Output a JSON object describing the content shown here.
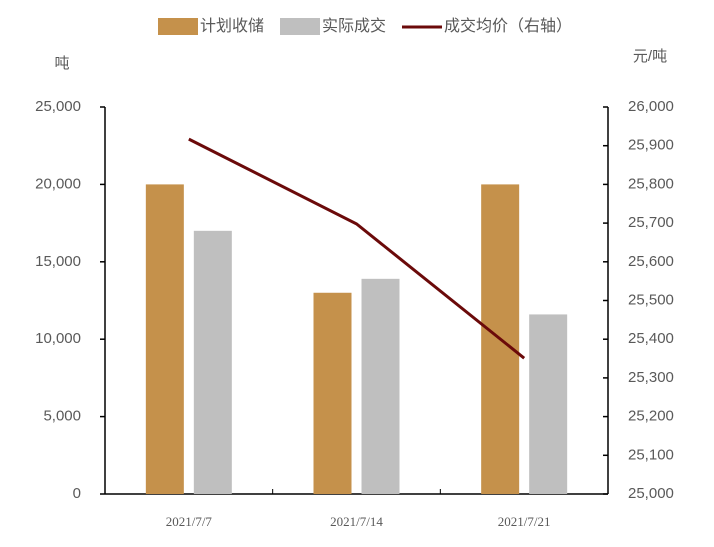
{
  "chart_data": {
    "type": "bar-line",
    "y_label": "吨",
    "y2_label": "元/吨",
    "categories": [
      "2021/7/7",
      "2021/7/14",
      "2021/7/21"
    ],
    "series": [
      {
        "name": "计划收储",
        "color": "#c5914b",
        "type": "bar",
        "values": [
          20000,
          13000,
          20000
        ]
      },
      {
        "name": "实际成交",
        "color": "#bfbfbf",
        "type": "bar",
        "values": [
          17000,
          13900,
          11600
        ]
      },
      {
        "name": "成交均价（右轴）",
        "color": "#6b0a0a",
        "type": "line",
        "axis": "y2",
        "values": [
          25917,
          25698,
          25351
        ]
      }
    ],
    "ylim": [
      0,
      25000
    ],
    "yticks": [
      0,
      {
        "value": 5000,
        "label": "5,000"
      },
      {
        "value": 10000,
        "label": "10,000"
      },
      {
        "value": 15000,
        "label": "15,000"
      },
      {
        "value": 20000,
        "label": "20,000"
      },
      {
        "value": 25000,
        "label": "25,000"
      }
    ],
    "y2lim": [
      25000,
      26000
    ],
    "y2ticks": [
      {
        "value": 25000,
        "label": "25,000"
      },
      {
        "value": 25100,
        "label": "25,100"
      },
      {
        "value": 25200,
        "label": "25,200"
      },
      {
        "value": 25300,
        "label": "25,300"
      },
      {
        "value": 25400,
        "label": "25,400"
      },
      {
        "value": 25500,
        "label": "25,500"
      },
      {
        "value": 25600,
        "label": "25,600"
      },
      {
        "value": 25700,
        "label": "25,700"
      },
      {
        "value": 25800,
        "label": "25,800"
      },
      {
        "value": 25900,
        "label": "25,900"
      },
      {
        "value": 26000,
        "label": "26,000"
      }
    ],
    "grid": false
  }
}
